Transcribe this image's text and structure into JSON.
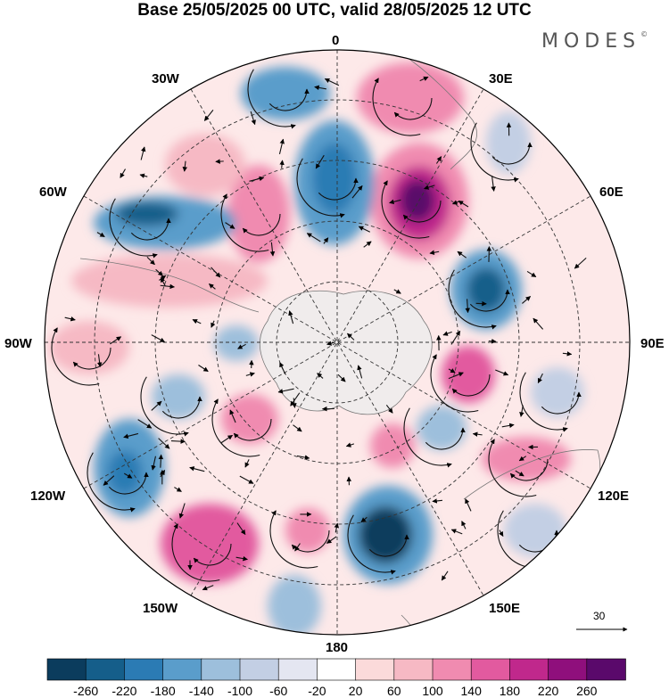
{
  "title": "Base 25/05/2025 00 UTC, valid 28/05/2025 12 UTC",
  "brand": "MODES",
  "brand_mark": "©",
  "map": {
    "projection": "south polar stereographic",
    "longitude_labels": {
      "lon_0": "0",
      "lon_30e": "30E",
      "lon_60e": "60E",
      "lon_90e": "90E",
      "lon_120e": "120E",
      "lon_150e": "150E",
      "lon_180": "180",
      "lon_150w": "150W",
      "lon_120w": "120W",
      "lon_90w": "90W",
      "lon_60w": "60W",
      "lon_30w": "30W"
    },
    "reference_vector_label": "30",
    "colors": {
      "neg": [
        "#0b3c5d",
        "#155e8a",
        "#2b7bb4",
        "#5a9dcb",
        "#9dbfdc",
        "#c3cfe4",
        "#e4e6f1"
      ],
      "neutral": "#ffffff",
      "pos": [
        "#fbdada",
        "#f6b9c4",
        "#f08bb0",
        "#e25a9f",
        "#c0288c",
        "#8f0f7c",
        "#5a096b"
      ],
      "land": "#ececec"
    }
  },
  "colorbar": {
    "ticks": [
      "-260",
      "-220",
      "-180",
      "-140",
      "-100",
      "-60",
      "-20",
      "20",
      "60",
      "100",
      "140",
      "180",
      "220",
      "260"
    ],
    "colors": [
      "#0b3c5d",
      "#155e8a",
      "#2b7bb4",
      "#5a9dcb",
      "#9dbfdc",
      "#c3cfe4",
      "#e4e6f1",
      "#ffffff",
      "#fbdada",
      "#f6b9c4",
      "#f08bb0",
      "#e25a9f",
      "#c0288c",
      "#8f0f7c",
      "#5a096b"
    ]
  }
}
